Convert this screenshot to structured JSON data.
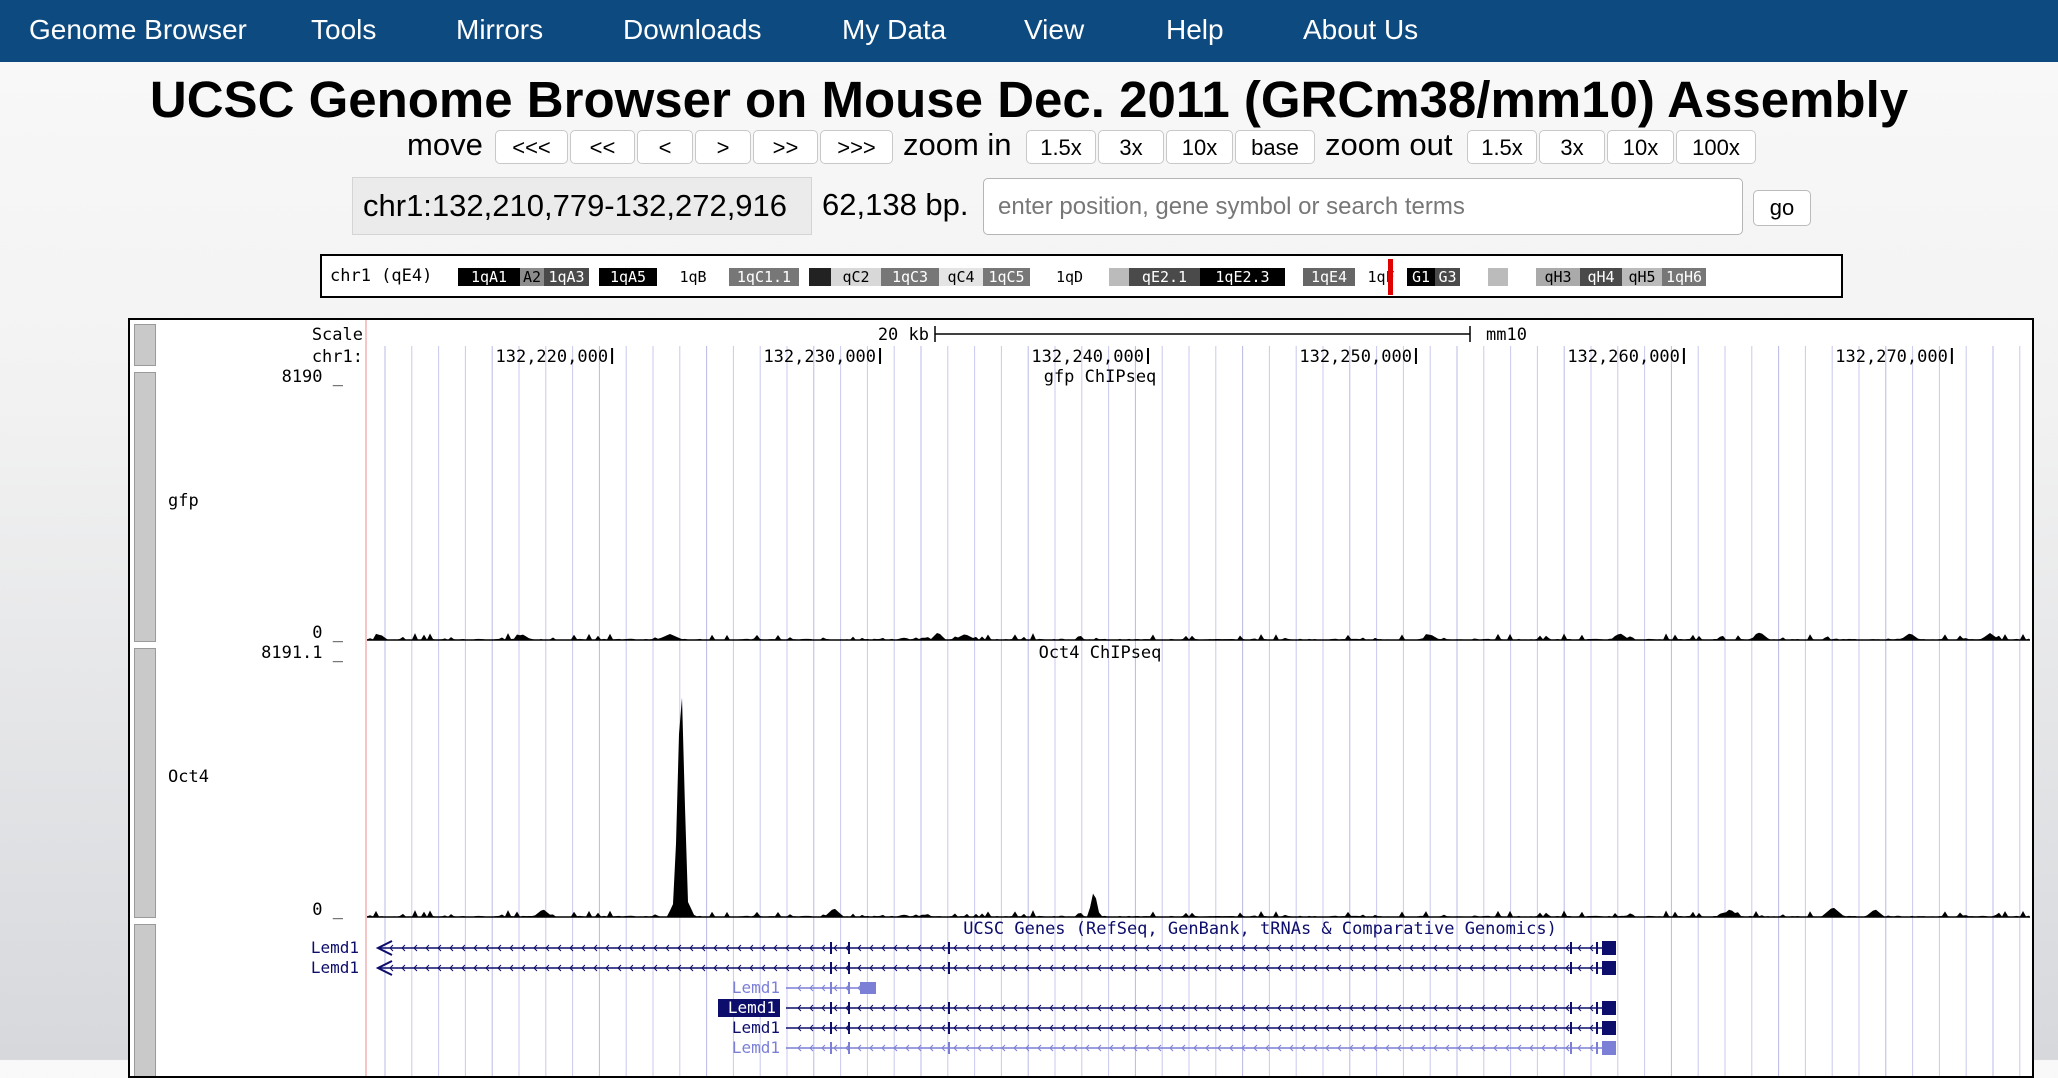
{
  "nav": {
    "items": [
      "Genome Browser",
      "Tools",
      "Mirrors",
      "Downloads",
      "My Data",
      "View",
      "Help",
      "About Us"
    ]
  },
  "title": "UCSC Genome Browser on Mouse Dec. 2011 (GRCm38/mm10) Assembly",
  "controls": {
    "move_label": "move",
    "move_buttons": [
      "<<<",
      "<<",
      "<",
      ">",
      ">>",
      ">>>"
    ],
    "zoom_in_label": "zoom in",
    "zoom_in_buttons": [
      "1.5x",
      "3x",
      "10x",
      "base"
    ],
    "zoom_out_label": "zoom out",
    "zoom_out_buttons": [
      "1.5x",
      "3x",
      "10x",
      "100x"
    ]
  },
  "position": {
    "value": "chr1:132,210,779-132,272,916",
    "size": "62,138 bp.",
    "search_placeholder": "enter position, gene symbol or search terms",
    "go_label": "go"
  },
  "ideogram": {
    "label": "chr1 (qE4)",
    "bands": [
      {
        "name": "1qA1",
        "color": "#000000"
      },
      {
        "name": "A2",
        "color": "#8c8c8c"
      },
      {
        "name": "1qA3",
        "color": "#4a4a4a"
      },
      {
        "name": "",
        "color": "#ffffff"
      },
      {
        "name": "1qA5",
        "color": "#000000"
      },
      {
        "name": "1qB",
        "color": "#ffffff"
      },
      {
        "name": "1qC1.1",
        "color": "#777777"
      },
      {
        "name": "",
        "color": "#ffffff"
      },
      {
        "name": "",
        "color": "#222222"
      },
      {
        "name": "qC2",
        "color": "#d8d8d8"
      },
      {
        "name": "1qC3",
        "color": "#777777"
      },
      {
        "name": "qC4",
        "color": "#e4e4e4"
      },
      {
        "name": "1qC5",
        "color": "#777777"
      },
      {
        "name": "1qD",
        "color": "#ffffff"
      },
      {
        "name": "",
        "color": "#bbbbbb"
      },
      {
        "name": "qE2.1",
        "color": "#4a4a4a"
      },
      {
        "name": "1qE2.3",
        "color": "#000000"
      },
      {
        "name": "",
        "color": "#ffffff"
      },
      {
        "name": "1qE4",
        "color": "#666666"
      },
      {
        "name": "1qF",
        "color": "#ffffff"
      },
      {
        "name": "G1",
        "color": "#000000"
      },
      {
        "name": "G3",
        "color": "#4a4a4a"
      },
      {
        "name": "",
        "color": "#ffffff"
      },
      {
        "name": "",
        "color": "#bbbbbb"
      },
      {
        "name": "",
        "color": "#ffffff"
      },
      {
        "name": "qH3",
        "color": "#aaaaaa"
      },
      {
        "name": "qH4",
        "color": "#4a4a4a"
      },
      {
        "name": "qH5",
        "color": "#bbbbbb"
      },
      {
        "name": "1qH6",
        "color": "#777777"
      }
    ],
    "current_band": "qE4"
  },
  "tracks": {
    "scale_label": "Scale",
    "chrom_label": "chr1:",
    "scale_bar_text": "20 kb",
    "assembly": "mm10",
    "coords": [
      "132,220,000",
      "132,230,000",
      "132,240,000",
      "132,250,000",
      "132,260,000",
      "132,270,000"
    ],
    "gfp": {
      "title": "gfp ChIPseq",
      "label": "gfp",
      "max": "8190 _",
      "min": "0 _"
    },
    "oct4": {
      "title": "Oct4 ChIPseq",
      "label": "Oct4",
      "max": "8191.1 _",
      "min": "0 _"
    },
    "genes": {
      "title": "UCSC Genes (RefSeq, GenBank, tRNAs & Comparative Genomics)",
      "labels": [
        "Lemd1",
        "Lemd1",
        "Lemd1",
        "Lemd1",
        "Lemd1",
        "Lemd1"
      ]
    }
  },
  "colors": {
    "nav_bg": "#0d4a80",
    "gene_dark": "#0d0d6b",
    "gene_light": "#7b7fd6",
    "grid": "#c9c9ee",
    "highlight_line": "#e88e8e"
  }
}
